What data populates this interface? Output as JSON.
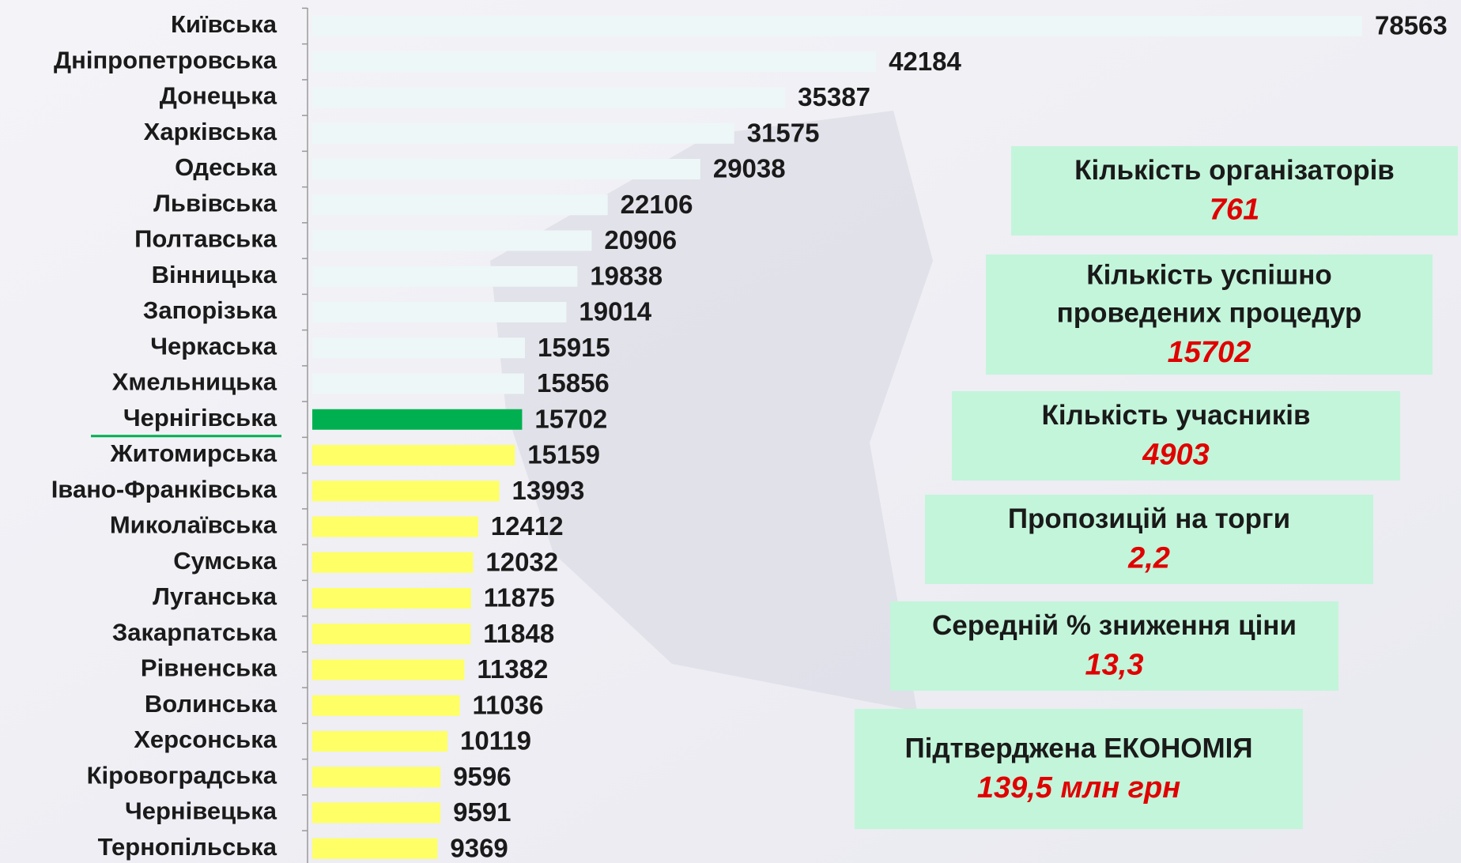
{
  "chart_data": {
    "type": "bar",
    "orientation": "horizontal",
    "categories": [
      "Київська",
      "Дніпропетровська",
      "Донецька",
      "Харківська",
      "Одеська",
      "Львівська",
      "Полтавська",
      "Вінницька",
      "Запорізька",
      "Черкаська",
      "Хмельницька",
      "Чернігівська",
      "Житомирська",
      "Івано-Франківська",
      "Миколаївська",
      "Сумська",
      "Луганська",
      "Закарпатська",
      "Рівненська",
      "Волинська",
      "Херсонська",
      "Кіровоградська",
      "Чернівецька",
      "Тернопільська"
    ],
    "values": [
      78563,
      42184,
      35387,
      31575,
      29038,
      22106,
      20906,
      19838,
      19014,
      15915,
      15856,
      15702,
      15159,
      13993,
      12412,
      12032,
      11875,
      11848,
      11382,
      11036,
      10119,
      9596,
      9591,
      9369
    ],
    "colors": [
      "#eef7f8",
      "#eef7f8",
      "#eef7f8",
      "#eef7f8",
      "#eef7f8",
      "#eef7f8",
      "#eef7f8",
      "#eef7f8",
      "#eef7f8",
      "#eef7f8",
      "#eef7f8",
      "#00b050",
      "#ffff66",
      "#ffff66",
      "#ffff66",
      "#ffff66",
      "#ffff66",
      "#ffff66",
      "#ffff66",
      "#ffff66",
      "#ffff66",
      "#ffff66",
      "#ffff66",
      "#ffff66"
    ],
    "highlight_category": 11,
    "annotations": [
      {
        "label": [
          "Кількість організаторів"
        ],
        "value": "761"
      },
      {
        "label": [
          "Кількість успішно",
          "проведених процедур"
        ],
        "value": "15702"
      },
      {
        "label": [
          "Кількість учасників"
        ],
        "value": "4903"
      },
      {
        "label": [
          "Пропозицій на торги"
        ],
        "value": "2,2"
      },
      {
        "label": [
          "Середній % зниження ціни"
        ],
        "value": "13,3"
      },
      {
        "label": [
          "Підтверджена ЕКОНОМІЯ"
        ],
        "value": "139,5 млн грн"
      }
    ]
  }
}
